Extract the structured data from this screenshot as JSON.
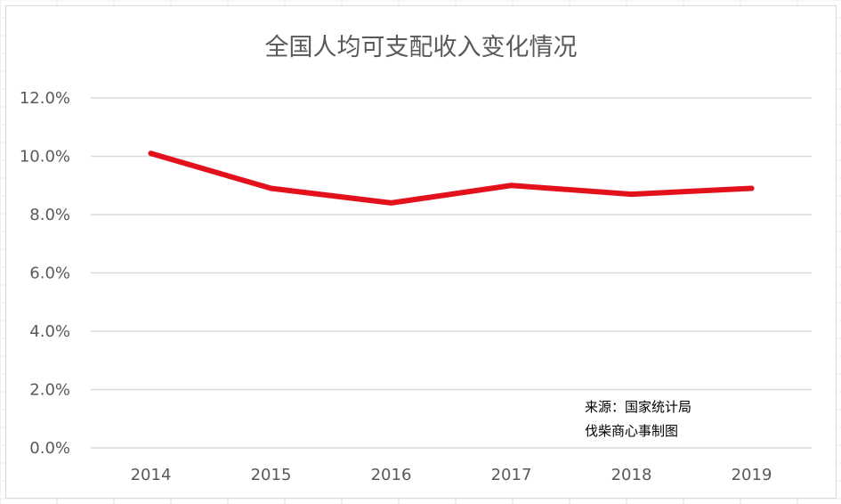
{
  "chart_data": {
    "type": "line",
    "title": "全国人均可支配收入变化情况",
    "xlabel": "",
    "ylabel": "",
    "categories": [
      "2014",
      "2015",
      "2016",
      "2017",
      "2018",
      "2019"
    ],
    "series": [
      {
        "values": [
          10.1,
          8.9,
          8.4,
          9.0,
          8.7,
          8.9
        ],
        "color": "#e3111b"
      }
    ],
    "ylim": [
      0,
      12
    ],
    "yticks": [
      0,
      2,
      4,
      6,
      8,
      10,
      12
    ],
    "ytick_labels": [
      "0.0%",
      "2.0%",
      "4.0%",
      "6.0%",
      "8.0%",
      "10.0%",
      "12.0%"
    ],
    "grid": true,
    "legend": "none",
    "annotations": [
      "来源：国家统计局",
      "伐柴商心事制图"
    ],
    "gridline_color": "#d9d9d9",
    "text_color": "#595959"
  }
}
